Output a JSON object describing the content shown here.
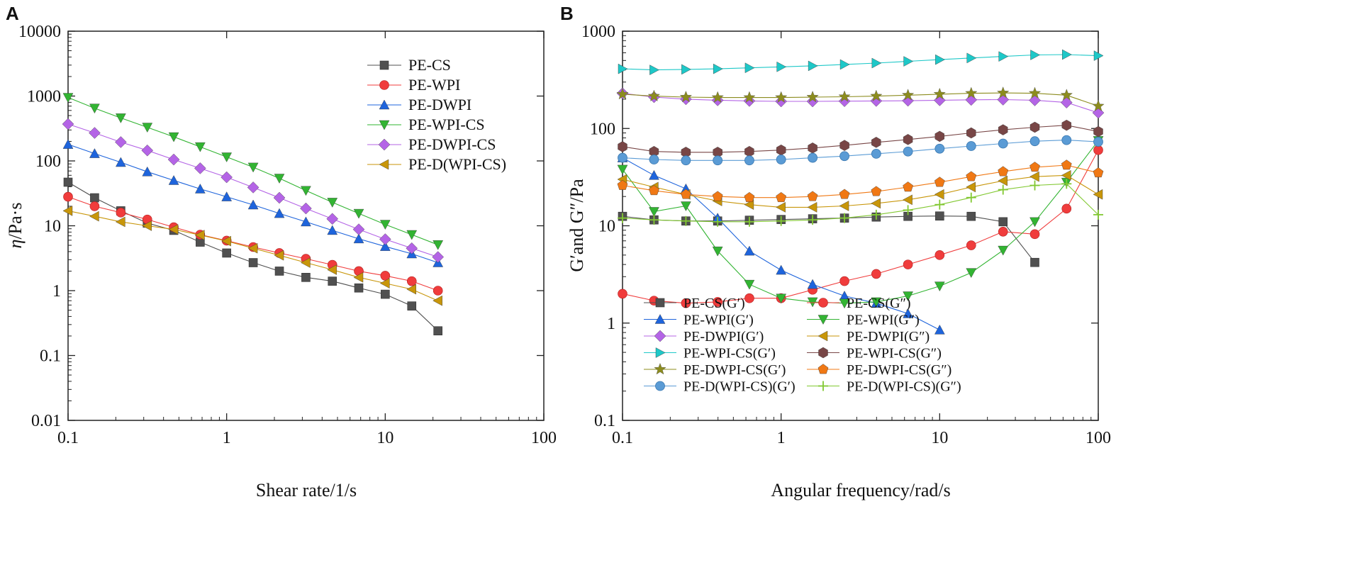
{
  "panels": {
    "a": {
      "letter": "A"
    },
    "b": {
      "letter": "B"
    }
  },
  "chart_data": [
    {
      "type": "line",
      "scale": "log-log",
      "xlabel": "Shear rate/1/s",
      "ylabel_italic": "η",
      "ylabel_rest": "/Pa·s",
      "xlim": [
        0.1,
        100
      ],
      "ylim": [
        0.01,
        10000
      ],
      "x_ticks": [
        0.1,
        1,
        10,
        100
      ],
      "x_tick_labels": [
        "0.1",
        "1",
        "10",
        "100"
      ],
      "y_ticks": [
        0.01,
        0.1,
        1,
        10,
        100,
        1000,
        10000
      ],
      "y_tick_labels": [
        "0.01",
        "0.1",
        "1",
        "10",
        "100",
        "1000",
        "10000"
      ],
      "legend_position": "top-right",
      "x": [
        0.1,
        0.147,
        0.215,
        0.316,
        0.464,
        0.681,
        1.0,
        1.47,
        2.15,
        3.16,
        4.64,
        6.81,
        10.0,
        14.7,
        21.5
      ],
      "series": [
        {
          "name": "PE-CS",
          "color": "#505050",
          "marker": "square",
          "values": [
            47,
            27,
            17,
            11,
            8.5,
            5.6,
            3.8,
            2.7,
            2.0,
            1.6,
            1.4,
            1.1,
            0.88,
            0.58,
            0.24
          ]
        },
        {
          "name": "PE-WPI",
          "color": "#f03c3c",
          "marker": "circle",
          "values": [
            28,
            20,
            16,
            12.5,
            9.5,
            7.3,
            5.9,
            4.7,
            3.8,
            3.1,
            2.5,
            2.0,
            1.7,
            1.4,
            1.0
          ]
        },
        {
          "name": "PE-DWPI",
          "color": "#1e64dc",
          "marker": "triangle-up",
          "values": [
            180,
            130,
            95,
            68,
            50,
            37,
            28,
            21,
            15.5,
            11.5,
            8.5,
            6.3,
            4.8,
            3.7,
            2.7
          ]
        },
        {
          "name": "PE-WPI-CS",
          "color": "#32b432",
          "marker": "triangle-down",
          "values": [
            950,
            650,
            460,
            330,
            235,
            165,
            115,
            80,
            54,
            35,
            23,
            15.5,
            10.5,
            7.3,
            5.1
          ]
        },
        {
          "name": "PE-DWPI-CS",
          "color": "#b464e6",
          "marker": "diamond",
          "values": [
            370,
            270,
            195,
            145,
            105,
            77,
            56,
            39,
            27,
            18.5,
            12.8,
            8.8,
            6.2,
            4.5,
            3.3
          ]
        },
        {
          "name": "PE-D(WPI-CS)",
          "color": "#c8960a",
          "marker": "triangle-left",
          "values": [
            17,
            14,
            11.5,
            10,
            8.8,
            7.2,
            5.8,
            4.5,
            3.5,
            2.7,
            2.1,
            1.6,
            1.3,
            1.05,
            0.7
          ]
        }
      ]
    },
    {
      "type": "line",
      "scale": "log-log",
      "xlabel": "Angular frequency/rad/s",
      "ylabel": "G′and G″/Pa",
      "xlim": [
        0.1,
        100
      ],
      "ylim": [
        0.1,
        1000
      ],
      "x_ticks": [
        0.1,
        1,
        10,
        100
      ],
      "x_tick_labels": [
        "0.1",
        "1",
        "10",
        "100"
      ],
      "y_ticks": [
        0.1,
        1,
        10,
        100,
        1000
      ],
      "y_tick_labels": [
        "0.1",
        "1",
        "10",
        "100",
        "1000"
      ],
      "legend_position": "bottom-left",
      "x": [
        0.1,
        0.158,
        0.251,
        0.398,
        0.631,
        1.0,
        1.58,
        2.51,
        3.98,
        6.31,
        10.0,
        15.8,
        25.1,
        39.8,
        63.1,
        100
      ],
      "series": [
        {
          "name": "PE-CS(G′)",
          "color": "#505050",
          "marker": "square",
          "values": [
            12.5,
            11.5,
            11.2,
            11.2,
            11.4,
            11.6,
            11.8,
            12.0,
            12.3,
            12.5,
            12.6,
            12.5,
            11.0,
            4.2,
            null,
            null
          ]
        },
        {
          "name": "PE-CS(G″)",
          "color": "#f03c3c",
          "marker": "circle",
          "values": [
            2.0,
            1.7,
            1.6,
            1.65,
            1.8,
            1.8,
            2.2,
            2.7,
            3.2,
            4.0,
            5.0,
            6.3,
            8.7,
            8.2,
            15,
            60
          ]
        },
        {
          "name": "PE-WPI(G′)",
          "color": "#1e64dc",
          "marker": "triangle-up",
          "values": [
            50,
            33,
            24,
            12,
            5.5,
            3.5,
            2.5,
            1.9,
            1.6,
            1.25,
            0.85,
            null,
            null,
            null,
            null,
            null
          ]
        },
        {
          "name": "PE-WPI(G″)",
          "color": "#32b432",
          "marker": "triangle-down",
          "values": [
            38,
            14,
            16,
            5.5,
            2.5,
            1.8,
            1.65,
            1.6,
            1.65,
            1.9,
            2.4,
            3.3,
            5.6,
            11,
            28,
            75
          ]
        },
        {
          "name": "PE-DWPI(G′)",
          "color": "#b464e6",
          "marker": "diamond",
          "values": [
            230,
            210,
            200,
            195,
            192,
            190,
            190,
            191,
            192,
            193,
            195,
            197,
            198,
            195,
            185,
            145
          ]
        },
        {
          "name": "PE-DWPI(G″)",
          "color": "#c8960a",
          "marker": "triangle-left",
          "values": [
            30,
            25,
            21,
            18,
            16.5,
            15.5,
            15.5,
            16,
            17,
            18.5,
            21,
            25,
            29,
            32,
            33,
            21
          ]
        },
        {
          "name": "PE-WPI-CS(G′)",
          "color": "#1ec8c8",
          "marker": "triangle-right",
          "values": [
            410,
            400,
            405,
            410,
            420,
            430,
            440,
            455,
            470,
            490,
            510,
            530,
            550,
            570,
            575,
            560
          ]
        },
        {
          "name": "PE-WPI-CS(G″)",
          "color": "#784646",
          "marker": "hexagon",
          "values": [
            65,
            58,
            57,
            57,
            58,
            60,
            63,
            67,
            72,
            77,
            83,
            90,
            97,
            103,
            108,
            93
          ]
        },
        {
          "name": "PE-DWPI-CS(G′)",
          "color": "#8c8c1e",
          "marker": "star",
          "values": [
            225,
            215,
            210,
            208,
            208,
            208,
            210,
            212,
            215,
            220,
            225,
            230,
            232,
            230,
            220,
            170
          ]
        },
        {
          "name": "PE-DWPI-CS(G″)",
          "color": "#f07814",
          "marker": "pentagon",
          "values": [
            26,
            23,
            21,
            20,
            19.5,
            19.5,
            20,
            21,
            22.5,
            25,
            28,
            32,
            36,
            40,
            42,
            35
          ]
        },
        {
          "name": "PE-D(WPI-CS)(G′)",
          "color": "#5a9bd5",
          "marker": "sphere",
          "values": [
            50,
            48,
            47,
            47,
            47,
            48,
            50,
            52,
            55,
            58,
            62,
            66,
            70,
            74,
            76,
            73
          ]
        },
        {
          "name": "PE-D(WPI-CS)(G″)",
          "color": "#82c832",
          "marker": "plus",
          "values": [
            12,
            11.5,
            11.2,
            11.0,
            11.0,
            11.2,
            11.5,
            12,
            13,
            14.5,
            16.5,
            19.5,
            23.5,
            26,
            27,
            13
          ]
        }
      ]
    }
  ]
}
